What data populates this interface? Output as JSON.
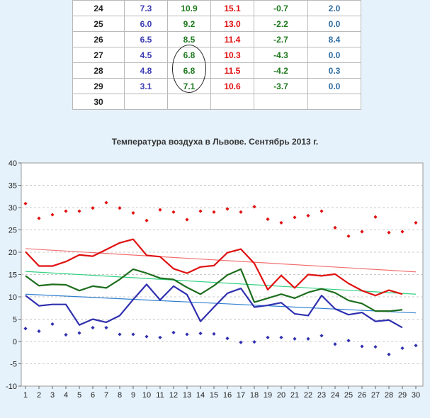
{
  "table": {
    "rows": [
      {
        "day": "24",
        "min": "7.3",
        "avg": "10.9",
        "max": "15.1",
        "dev": "-0.7",
        "prec": "2.0"
      },
      {
        "day": "25",
        "min": "6.0",
        "avg": "9.2",
        "max": "13.0",
        "dev": "-2.2",
        "prec": "0.0"
      },
      {
        "day": "26",
        "min": "6.5",
        "avg": "8.5",
        "max": "11.4",
        "dev": "-2.7",
        "prec": "8.4"
      },
      {
        "day": "27",
        "min": "4.5",
        "avg": "6.8",
        "max": "10.3",
        "dev": "-4.3",
        "prec": "0.0"
      },
      {
        "day": "28",
        "min": "4.8",
        "avg": "6.8",
        "max": "11.5",
        "dev": "-4.2",
        "prec": "0.3"
      },
      {
        "day": "29",
        "min": "3.1",
        "avg": "7.1",
        "max": "10.6",
        "dev": "-3.7",
        "prec": "0.0"
      },
      {
        "day": "30",
        "min": "",
        "avg": "",
        "max": "",
        "dev": "",
        "prec": ""
      }
    ]
  },
  "colors": {
    "max": "#e01010",
    "avg": "#1e6e1e",
    "min": "#3030b0",
    "trend_max": "#f07070",
    "trend_avg": "#30d080",
    "trend_min": "#3080d0"
  },
  "chart_data": {
    "type": "line",
    "title": "Температура воздуха в Львове. Сентябрь 2013 г.",
    "x": [
      1,
      2,
      3,
      4,
      5,
      6,
      7,
      8,
      9,
      10,
      11,
      12,
      13,
      14,
      15,
      16,
      17,
      18,
      19,
      20,
      21,
      22,
      23,
      24,
      25,
      26,
      27,
      28,
      29,
      30
    ],
    "xlim": [
      1,
      30
    ],
    "ylim": [
      -10,
      40
    ],
    "yticks": [
      -10,
      -5,
      0,
      5,
      10,
      15,
      20,
      25,
      30,
      35,
      40
    ],
    "grid": true,
    "series": [
      {
        "role": "max",
        "style": "line",
        "values": [
          20.1,
          16.9,
          16.9,
          17.9,
          19.4,
          19.1,
          20.6,
          22.1,
          22.9,
          19.3,
          19.0,
          16.3,
          15.3,
          16.7,
          17.0,
          19.9,
          20.7,
          17.5,
          11.6,
          14.8,
          12.0,
          15.0,
          14.7,
          15.1,
          13.0,
          11.4,
          10.3,
          11.5,
          10.6,
          null
        ]
      },
      {
        "role": "avg",
        "style": "line",
        "values": [
          14.7,
          12.5,
          12.8,
          12.7,
          11.4,
          12.4,
          12.0,
          13.9,
          16.2,
          15.3,
          14.2,
          13.9,
          12.1,
          10.6,
          12.5,
          14.9,
          16.2,
          8.8,
          9.7,
          10.6,
          9.7,
          11.0,
          11.8,
          10.9,
          9.2,
          8.5,
          6.8,
          6.8,
          7.1,
          null
        ]
      },
      {
        "role": "min",
        "style": "line",
        "values": [
          10.3,
          8.0,
          8.3,
          8.3,
          3.7,
          5.0,
          4.3,
          5.8,
          9.4,
          12.8,
          9.3,
          12.4,
          10.5,
          4.5,
          7.7,
          10.8,
          11.9,
          7.7,
          8.1,
          8.7,
          6.2,
          5.8,
          10.3,
          7.3,
          6.0,
          6.5,
          4.5,
          4.8,
          3.1,
          null
        ]
      },
      {
        "role": "record_max",
        "style": "points",
        "values": [
          30.9,
          27.6,
          28.4,
          29.2,
          29.2,
          29.9,
          31.1,
          29.9,
          28.8,
          27.1,
          29.5,
          29.0,
          27.3,
          29.2,
          29.0,
          29.7,
          29.0,
          30.2,
          27.4,
          26.6,
          27.8,
          28.2,
          29.2,
          25.5,
          23.6,
          24.6,
          27.9,
          24.4,
          24.6,
          26.6
        ]
      },
      {
        "role": "record_min",
        "style": "points",
        "values": [
          2.9,
          2.3,
          3.9,
          1.5,
          1.9,
          3.1,
          3.1,
          1.6,
          1.6,
          1.1,
          0.9,
          2.0,
          1.6,
          1.8,
          1.7,
          0.7,
          -0.2,
          -0.1,
          0.9,
          0.9,
          0.6,
          0.6,
          1.3,
          -0.6,
          0.2,
          -1.1,
          -1.2,
          -2.9,
          -1.5,
          -0.9
        ]
      }
    ],
    "trends": [
      {
        "role": "trend_max",
        "from": [
          1,
          20.8
        ],
        "to": [
          30,
          15.6
        ]
      },
      {
        "role": "trend_avg",
        "from": [
          1,
          15.7
        ],
        "to": [
          30,
          10.6
        ]
      },
      {
        "role": "trend_min",
        "from": [
          1,
          10.6
        ],
        "to": [
          30,
          6.4
        ]
      }
    ]
  }
}
